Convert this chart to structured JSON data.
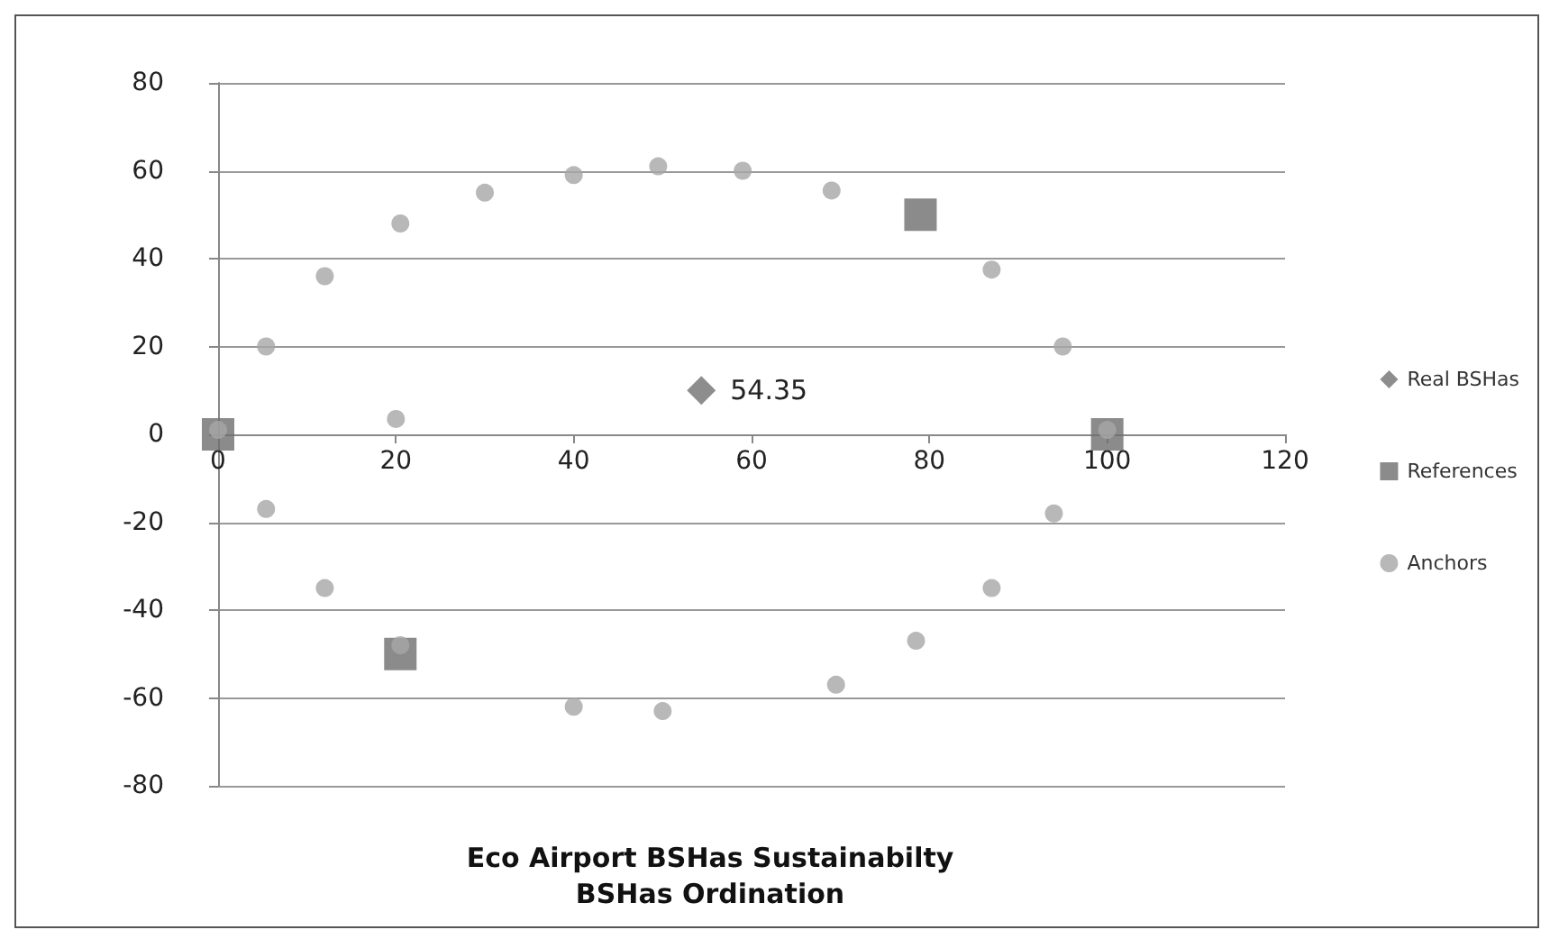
{
  "chart_data": {
    "type": "scatter",
    "title": "Eco Airport BSHas Sustainabilty\nBSHas Ordination",
    "xlim": [
      0,
      120
    ],
    "xticks": [
      0,
      20,
      40,
      60,
      80,
      100,
      120
    ],
    "ylim": [
      -80,
      80
    ],
    "yticks": [
      -80,
      -60,
      -40,
      -20,
      0,
      20,
      40,
      60,
      80
    ],
    "grid": "y",
    "legend": "right",
    "annotations": [
      {
        "text": "54.35",
        "x": 54.35,
        "y": 10
      }
    ],
    "series": [
      {
        "name": "Real BSHas",
        "marker": "diamond",
        "color": "#707070",
        "x": [
          54.35
        ],
        "values": [
          10
        ]
      },
      {
        "name": "References",
        "marker": "square",
        "color": "#6e6e6e",
        "x": [
          0,
          79,
          100,
          20.5
        ],
        "values": [
          0,
          50,
          0,
          -50
        ]
      },
      {
        "name": "Anchors",
        "marker": "circle",
        "color": "#a6a6a6",
        "x": [
          5.4,
          12,
          20.5,
          30,
          40,
          49.5,
          59,
          69,
          87,
          95,
          100,
          0,
          20,
          5.4,
          12,
          20.5,
          40,
          50,
          69.5,
          78.5,
          87,
          94
        ],
        "values": [
          20,
          36,
          48,
          55,
          59,
          61,
          60,
          55.5,
          37.5,
          20,
          1,
          1,
          3.5,
          -17,
          -35,
          -48,
          -62,
          -63,
          -57,
          -47,
          -35,
          -18
        ]
      }
    ]
  }
}
